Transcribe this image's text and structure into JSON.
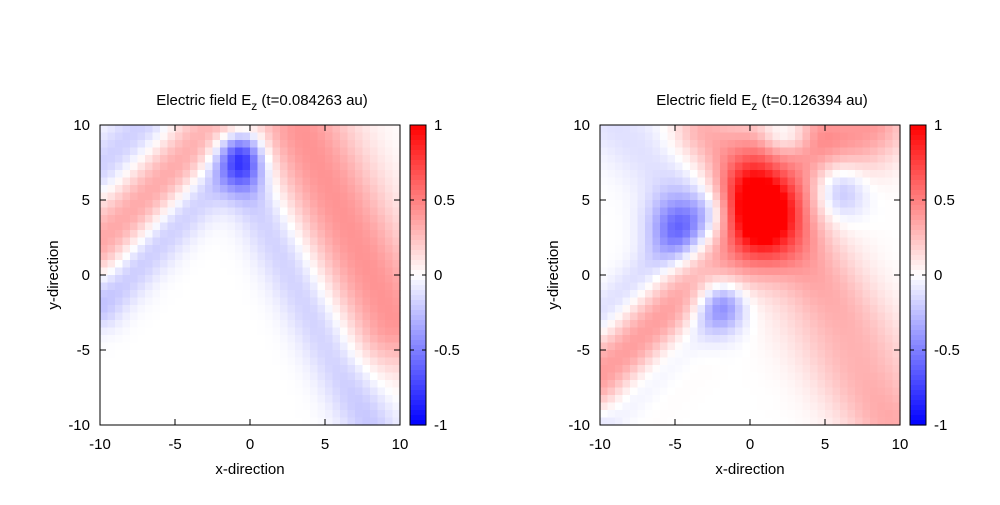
{
  "chart_data": [
    {
      "type": "heatmap",
      "title": "Electric field E",
      "title_subscript": "z",
      "title_suffix": " (t=0.084263 au)",
      "xlabel": "x-direction",
      "ylabel": "y-direction",
      "xlim": [
        -10,
        10
      ],
      "ylim": [
        -10,
        10
      ],
      "x_ticks": [
        "-10",
        "-5",
        "0",
        "5",
        "10"
      ],
      "y_ticks": [
        "-10",
        "-5",
        "0",
        "5",
        "10"
      ],
      "colorbar_range": [
        -1,
        1
      ],
      "colorbar_ticks": [
        "-1",
        "-0.5",
        "0",
        "0.5",
        "1"
      ],
      "colormap": [
        "#0000ff",
        "#ffffff",
        "#ff0000"
      ],
      "grid": false,
      "features": [
        {
          "kind": "band",
          "from": [
            -10,
            2
          ],
          "to": [
            -2,
            10
          ],
          "width": 1.5,
          "value": 0.35
        },
        {
          "kind": "band",
          "from": [
            -10,
            7
          ],
          "to": [
            -7,
            10
          ],
          "width": 1.2,
          "value": -0.2
        },
        {
          "kind": "band",
          "from": [
            -10,
            -2
          ],
          "to": [
            -1,
            8
          ],
          "width": 1.1,
          "value": -0.25
        },
        {
          "kind": "band",
          "from": [
            -1,
            8
          ],
          "to": [
            8,
            -10
          ],
          "width": 1.3,
          "value": -0.22
        },
        {
          "kind": "band",
          "from": [
            3.5,
            9.5
          ],
          "to": [
            9.5,
            -3
          ],
          "width": 2.3,
          "value": 0.42
        },
        {
          "kind": "blob",
          "at": [
            -0.5,
            7.5
          ],
          "rx": 1.0,
          "ry": 1.4,
          "value": -0.5
        }
      ]
    },
    {
      "type": "heatmap",
      "title": "Electric field E",
      "title_subscript": "z",
      "title_suffix": " (t=0.126394 au)",
      "xlabel": "x-direction",
      "ylabel": "y-direction",
      "xlim": [
        -10,
        10
      ],
      "ylim": [
        -10,
        10
      ],
      "x_ticks": [
        "-10",
        "-5",
        "0",
        "5",
        "10"
      ],
      "y_ticks": [
        "-10",
        "-5",
        "0",
        "5",
        "10"
      ],
      "colorbar_range": [
        -1,
        1
      ],
      "colorbar_ticks": [
        "-1",
        "-0.5",
        "0",
        "0.5",
        "1"
      ],
      "colormap": [
        "#0000ff",
        "#ffffff",
        "#ff0000"
      ],
      "grid": false,
      "features": [
        {
          "kind": "band",
          "from": [
            -10,
            -7
          ],
          "to": [
            8,
            10
          ],
          "width": 1.8,
          "value": 0.4
        },
        {
          "kind": "band",
          "from": [
            -10,
            -3
          ],
          "to": [
            -3,
            4
          ],
          "width": 1.0,
          "value": -0.2
        },
        {
          "kind": "band",
          "from": [
            -10,
            -10
          ],
          "to": [
            -2,
            -2
          ],
          "width": 1.0,
          "value": -0.2
        },
        {
          "kind": "band",
          "from": [
            -9,
            10
          ],
          "to": [
            10,
            -8
          ],
          "width": 1.6,
          "value": -0.12
        },
        {
          "kind": "band",
          "from": [
            3,
            1
          ],
          "to": [
            9.5,
            -9
          ],
          "width": 2.2,
          "value": 0.42
        },
        {
          "kind": "band",
          "from": [
            -3,
            9.5
          ],
          "to": [
            -1,
            7
          ],
          "width": 1.5,
          "value": 0.32
        },
        {
          "kind": "band",
          "from": [
            1,
            9
          ],
          "to": [
            4,
            9.5
          ],
          "width": 1.4,
          "value": 0.3
        },
        {
          "kind": "blob",
          "at": [
            0.5,
            4.5
          ],
          "rx": 1.6,
          "ry": 2.0,
          "value": 1.0
        },
        {
          "kind": "blob",
          "at": [
            -5,
            3.3
          ],
          "rx": 1.3,
          "ry": 1.5,
          "value": -0.45
        },
        {
          "kind": "blob",
          "at": [
            5.8,
            5.8
          ],
          "rx": 1.3,
          "ry": 1.5,
          "value": -0.45
        },
        {
          "kind": "blob",
          "at": [
            -2,
            -2
          ],
          "rx": 1.2,
          "ry": 1.4,
          "value": -0.45
        },
        {
          "kind": "blob",
          "at": [
            2.3,
            9.3
          ],
          "rx": 1.3,
          "ry": 0.9,
          "value": -0.35
        }
      ]
    }
  ]
}
